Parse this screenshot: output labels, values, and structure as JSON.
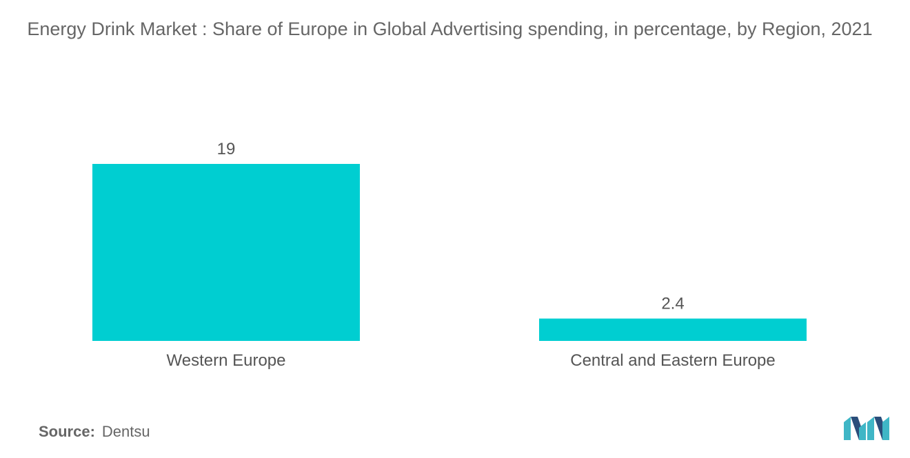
{
  "title": "Energy Drink Market : Share of Europe in Global Advertising spending, in percentage, by Region, 2021",
  "source": {
    "label": "Source:",
    "value": "Dentsu"
  },
  "colors": {
    "bar": "#00CED1",
    "text": "#555555",
    "logo_dark": "#2a4d7a",
    "logo_light": "#3fb6c6"
  },
  "chart_data": {
    "type": "bar",
    "title": "Energy Drink Market : Share of Europe in Global Advertising spending, in percentage, by Region, 2021",
    "categories": [
      "Western Europe",
      "Central and Eastern Europe"
    ],
    "values": [
      19,
      2.4
    ],
    "data_labels": [
      "19",
      "2.4"
    ],
    "xlabel": "",
    "ylabel": "",
    "ylim": [
      0,
      19
    ],
    "grid": false,
    "legend": "none"
  }
}
